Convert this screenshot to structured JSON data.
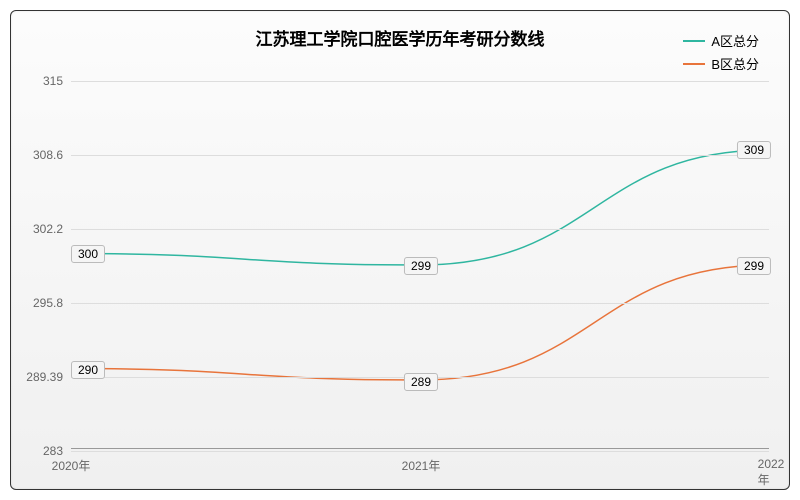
{
  "chart": {
    "type": "line",
    "title": "江苏理工学院口腔医学历年考研分数线",
    "title_fontsize": 17,
    "background_gradient_top": "#fcfcfc",
    "background_gradient_bottom": "#f0f0f0",
    "border_color": "#333333",
    "grid_color": "#dddddd",
    "x": {
      "categories": [
        "2020年",
        "2021年",
        "2022年"
      ]
    },
    "y": {
      "min": 283,
      "max": 315,
      "ticks": [
        283,
        289.39,
        295.8,
        302.2,
        308.6,
        315
      ]
    },
    "series": [
      {
        "name": "A区总分",
        "color": "#2fb6a0",
        "values": [
          300,
          299,
          309
        ],
        "labels": [
          "300",
          "299",
          "309"
        ]
      },
      {
        "name": "B区总分",
        "color": "#e8743b",
        "values": [
          290,
          289,
          299
        ],
        "labels": [
          "290",
          "289",
          "299"
        ]
      }
    ],
    "line_width": 1.5,
    "label_fontsize": 12
  }
}
